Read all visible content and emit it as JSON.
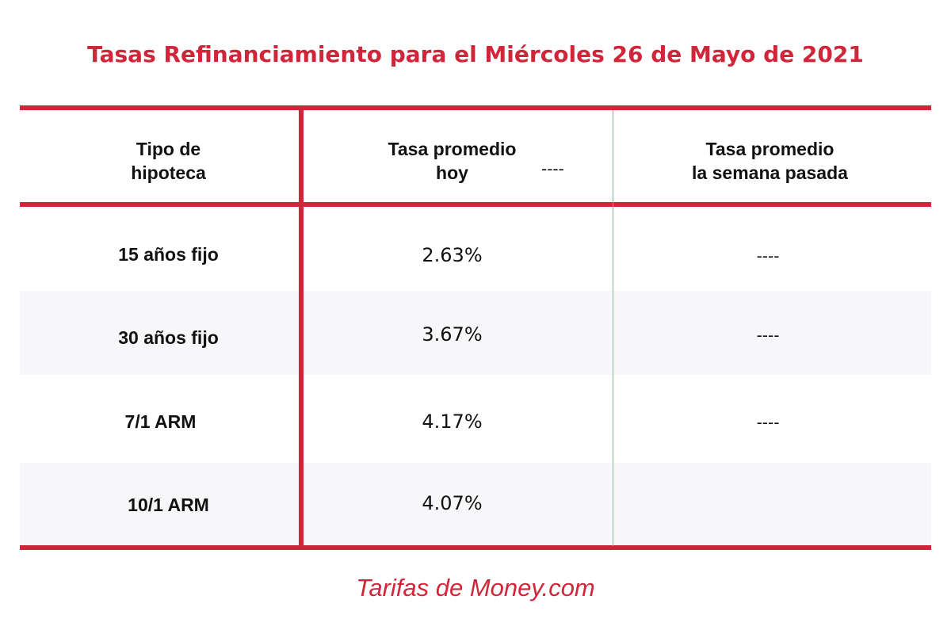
{
  "title": "Tasas Refinanciamiento para el Miércoles 26 de Mayo de 2021",
  "header": {
    "col1_line1": "Tipo de",
    "col1_line2": "hipoteca",
    "col2_line1": "Tasa promedio",
    "col2_line2": "hoy",
    "col2_extra": "----",
    "col3_line1": "Tasa promedio",
    "col3_line2": "la semana pasada"
  },
  "rows": [
    {
      "type": "15 años fijo",
      "rate": "2.63%",
      "prev": "----"
    },
    {
      "type": "30 años fijo",
      "rate": "3.67%",
      "prev": "----"
    },
    {
      "type": "7/1 ARM",
      "rate": "4.17%",
      "prev": "----"
    },
    {
      "type": "10/1 ARM",
      "rate": "4.07%",
      "prev": ""
    }
  ],
  "footer": "Tarifas de Money.com",
  "colors": {
    "accent": "#d0263a",
    "row_shade": "#f7f6f9"
  }
}
